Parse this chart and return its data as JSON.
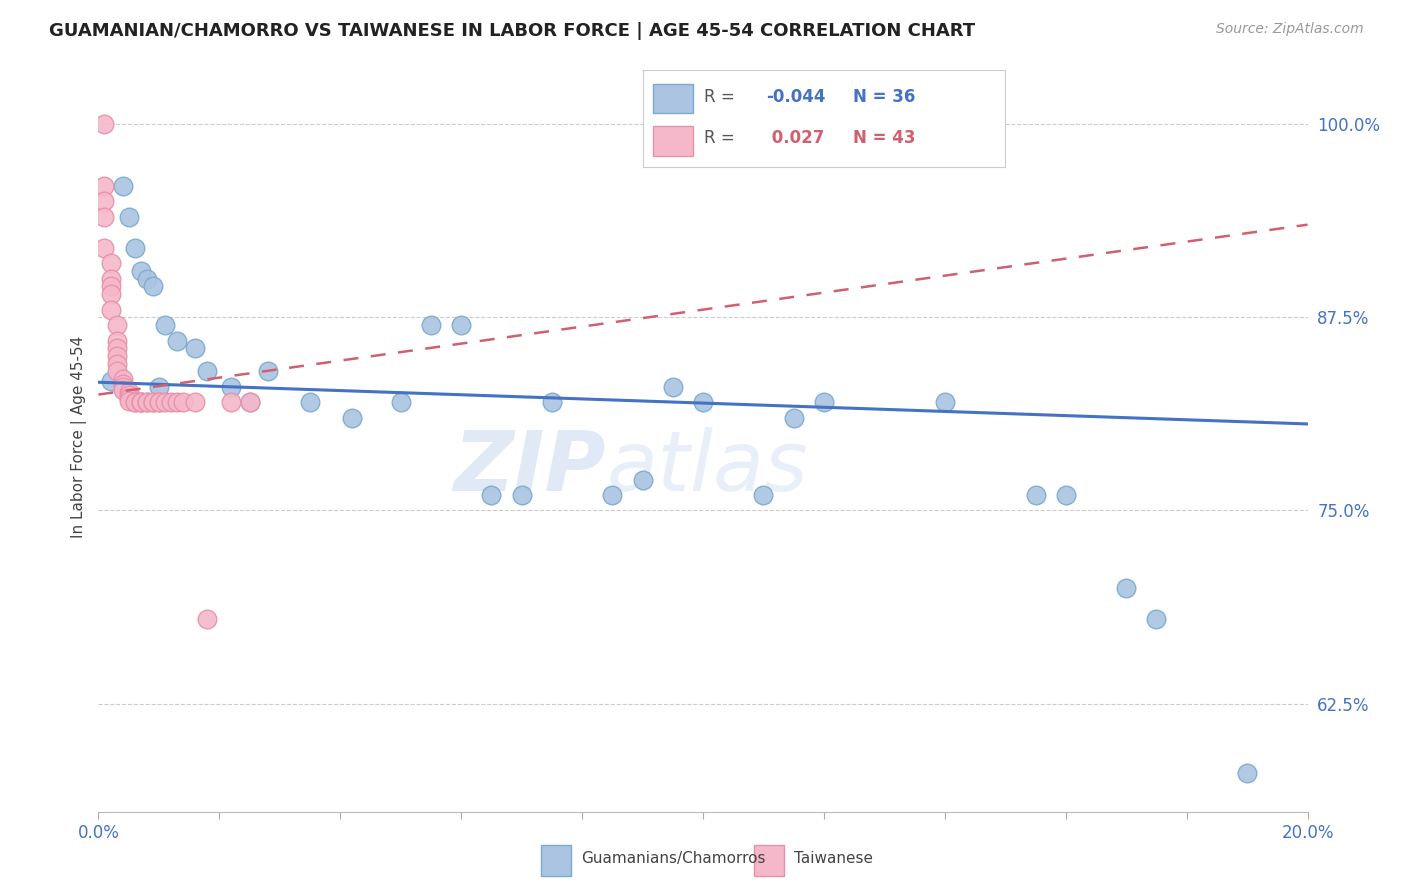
{
  "title": "GUAMANIAN/CHAMORRO VS TAIWANESE IN LABOR FORCE | AGE 45-54 CORRELATION CHART",
  "source": "Source: ZipAtlas.com",
  "ylabel": "In Labor Force | Age 45-54",
  "xlim": [
    0.0,
    0.2
  ],
  "ylim": [
    0.555,
    1.04
  ],
  "yticks": [
    0.625,
    0.75,
    0.875,
    1.0
  ],
  "ytick_labels": [
    "62.5%",
    "75.0%",
    "87.5%",
    "100.0%"
  ],
  "xticks": [
    0.0,
    0.02,
    0.04,
    0.06,
    0.08,
    0.1,
    0.12,
    0.14,
    0.16,
    0.18,
    0.2
  ],
  "blue_R": -0.044,
  "blue_N": 36,
  "pink_R": 0.027,
  "pink_N": 43,
  "blue_label": "Guamanians/Chamorros",
  "pink_label": "Taiwanese",
  "blue_color": "#aac4e2",
  "pink_color": "#f5b8cb",
  "blue_edge": "#7aaacf",
  "pink_edge": "#e890a8",
  "trend_blue": "#4472c4",
  "trend_pink": "#d06070",
  "blue_x": [
    0.002,
    0.004,
    0.005,
    0.006,
    0.007,
    0.008,
    0.009,
    0.01,
    0.011,
    0.013,
    0.016,
    0.018,
    0.022,
    0.025,
    0.028,
    0.035,
    0.042,
    0.05,
    0.055,
    0.06,
    0.065,
    0.07,
    0.075,
    0.085,
    0.09,
    0.095,
    0.1,
    0.11,
    0.115,
    0.12,
    0.14,
    0.155,
    0.16,
    0.17,
    0.175,
    0.19
  ],
  "blue_y": [
    0.834,
    0.96,
    0.94,
    0.92,
    0.905,
    0.9,
    0.895,
    0.83,
    0.87,
    0.86,
    0.855,
    0.84,
    0.83,
    0.82,
    0.84,
    0.82,
    0.81,
    0.82,
    0.87,
    0.87,
    0.76,
    0.76,
    0.82,
    0.76,
    0.77,
    0.83,
    0.82,
    0.76,
    0.81,
    0.82,
    0.82,
    0.76,
    0.76,
    0.7,
    0.68,
    0.58
  ],
  "pink_x": [
    0.001,
    0.001,
    0.001,
    0.001,
    0.001,
    0.002,
    0.002,
    0.002,
    0.002,
    0.002,
    0.003,
    0.003,
    0.003,
    0.003,
    0.003,
    0.003,
    0.004,
    0.004,
    0.004,
    0.004,
    0.005,
    0.005,
    0.005,
    0.005,
    0.006,
    0.006,
    0.007,
    0.007,
    0.007,
    0.008,
    0.008,
    0.009,
    0.009,
    0.01,
    0.01,
    0.011,
    0.012,
    0.013,
    0.014,
    0.016,
    0.018,
    0.022,
    0.025
  ],
  "pink_y": [
    1.0,
    0.96,
    0.95,
    0.94,
    0.92,
    0.91,
    0.9,
    0.895,
    0.89,
    0.88,
    0.87,
    0.86,
    0.855,
    0.85,
    0.845,
    0.84,
    0.835,
    0.832,
    0.83,
    0.828,
    0.827,
    0.825,
    0.823,
    0.821,
    0.82,
    0.82,
    0.82,
    0.82,
    0.82,
    0.82,
    0.82,
    0.82,
    0.82,
    0.82,
    0.82,
    0.82,
    0.82,
    0.82,
    0.82,
    0.82,
    0.68,
    0.82,
    0.82
  ],
  "watermark_zip": "ZIP",
  "watermark_atlas": "atlas",
  "background_color": "#ffffff",
  "grid_color": "#cccccc"
}
